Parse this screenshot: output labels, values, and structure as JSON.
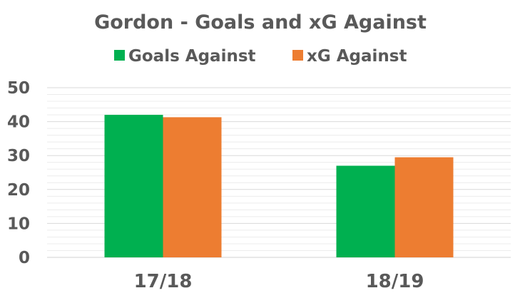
{
  "chart_data": {
    "type": "bar",
    "title": "Gordon - Goals and xG Against",
    "categories": [
      "17/18",
      "18/19"
    ],
    "series": [
      {
        "name": "Goals Against",
        "values": [
          42,
          27
        ],
        "color": "#00B050"
      },
      {
        "name": "xG Against",
        "values": [
          41.3,
          29.5
        ],
        "color": "#ED7D31"
      }
    ],
    "ylim": [
      0,
      50
    ],
    "yticks": [
      0,
      10,
      20,
      30,
      40,
      50
    ],
    "minor_gridline_step": 2,
    "grid": true,
    "legend_position": "top",
    "xlabel": "",
    "ylabel": ""
  }
}
